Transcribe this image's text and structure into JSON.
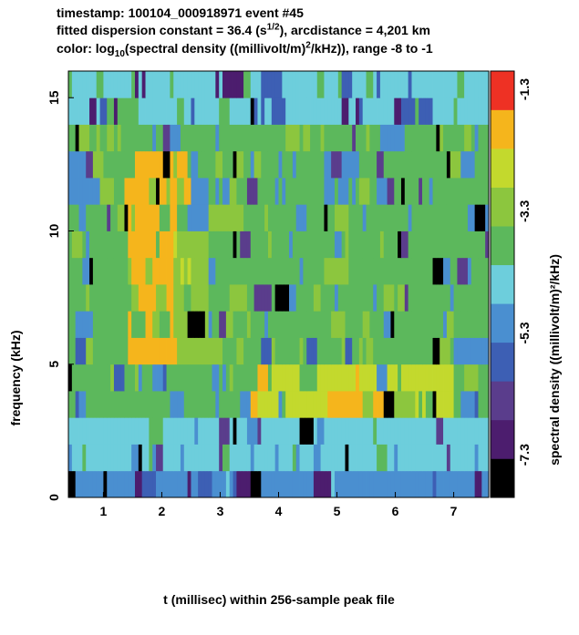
{
  "chart_data": {
    "type": "heatmap",
    "title_lines": [
      {
        "text": "timestamp: 100104_000918971 event #45"
      },
      {
        "pre": "fitted dispersion constant = 36.4 (s",
        "sup": "1/2",
        "post": "), arcdistance = 4,201 km"
      },
      {
        "pre": "color: log",
        "sub": "10",
        "mid": "(spectral density ((millivolt/m)",
        "sup": "2",
        "post": "/kHz)), range -8 to -1"
      }
    ],
    "xlabel": "t (millisec) within 256-sample peak file",
    "ylabel": "frequency (kHz)",
    "colorbar_label": "spectral density ((millivolt/m)²/kHz)",
    "x_range": [
      0.4,
      7.6
    ],
    "y_range": [
      0,
      16
    ],
    "x_ticks": [
      "1",
      "2",
      "3",
      "4",
      "5",
      "6",
      "7"
    ],
    "y_ticks": [
      "0",
      "5",
      "10",
      "15"
    ],
    "colorbar_range": [
      -8,
      -1
    ],
    "colorbar_ticks": [
      "-7.3",
      "-5.3",
      "-3.3",
      "-1.3"
    ],
    "colormap": [
      "#000000",
      "#4c1d6e",
      "#5a3d8c",
      "#3d5fb4",
      "#4a8fd0",
      "#6dcedc",
      "#5cb85c",
      "#8cc63e",
      "#c3d92d",
      "#f5b51c",
      "#ee3124"
    ],
    "grid": false
  }
}
